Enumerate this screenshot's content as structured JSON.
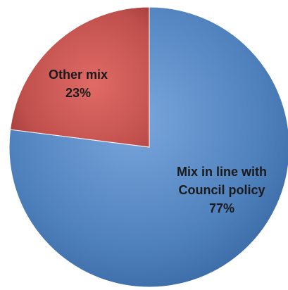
{
  "chart_data": {
    "type": "pie",
    "title": "",
    "slices": [
      {
        "label_lines": [
          "Mix in line with",
          "Council policy"
        ],
        "value": 77,
        "value_label": "77%",
        "color": "#4f81bd"
      },
      {
        "label_lines": [
          "Other mix"
        ],
        "value": 23,
        "value_label": "23%",
        "color": "#c0504d"
      }
    ],
    "start": "12 o'clock",
    "direction": "clockwise",
    "legend": "none",
    "style": "3d-shaded"
  }
}
